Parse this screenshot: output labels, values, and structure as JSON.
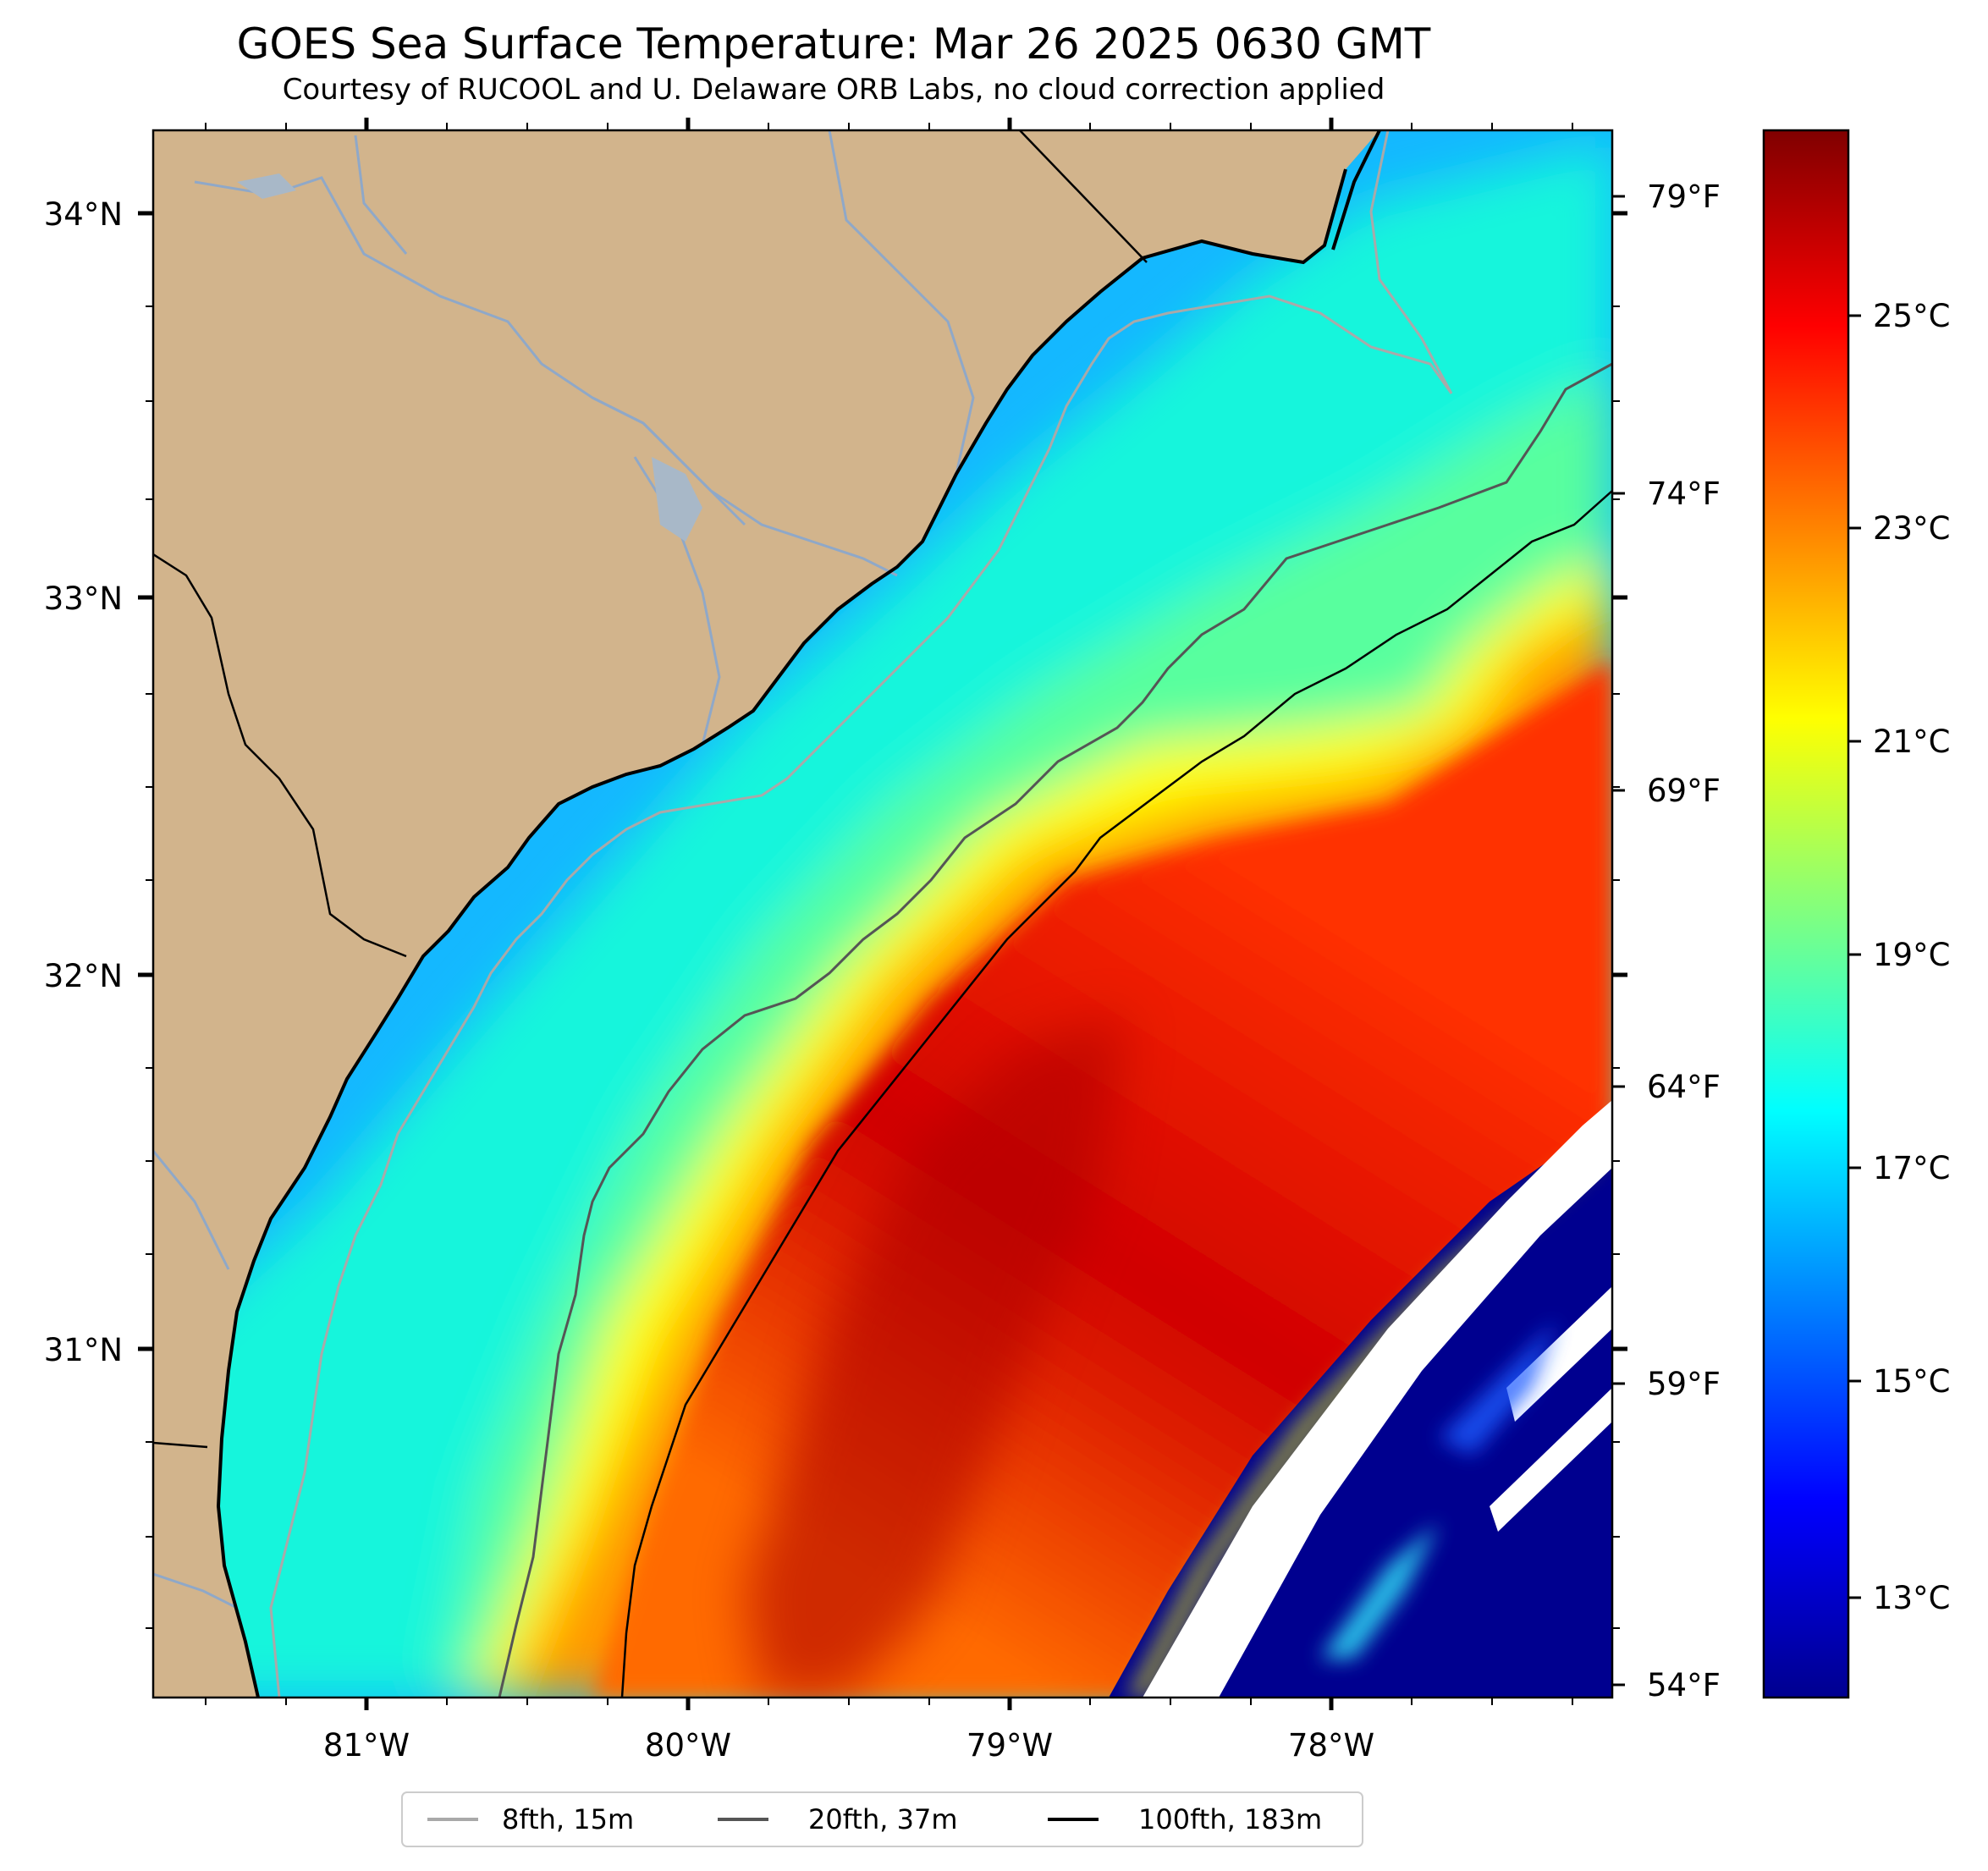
{
  "title": "GOES Sea Surface Temperature: Mar 26 2025 0630 GMT",
  "subtitle": "Courtesy of RUCOOL and U. Delaware ORB Labs, no cloud correction applied",
  "map": {
    "latitude_labels": [
      "34°N",
      "33°N",
      "32°N",
      "31°N"
    ],
    "longitude_labels": [
      "81°W",
      "80°W",
      "79°W",
      "78°W"
    ],
    "fahrenheit_labels": [
      "79°F",
      "74°F",
      "69°F",
      "64°F",
      "59°F",
      "54°F"
    ],
    "land_color": "#d2b48c",
    "no_data_color": "#ffffff"
  },
  "colorbar": {
    "labels": [
      "25°C",
      "23°C",
      "21°C",
      "19°C",
      "17°C",
      "15°C",
      "13°C"
    ],
    "colormap": "jet"
  },
  "legend": {
    "items": [
      {
        "label": "8fth, 15m",
        "color": "#a9a9a9"
      },
      {
        "label": "20fth, 37m",
        "color": "#555555"
      },
      {
        "label": "100fth, 183m",
        "color": "#000000"
      }
    ]
  }
}
